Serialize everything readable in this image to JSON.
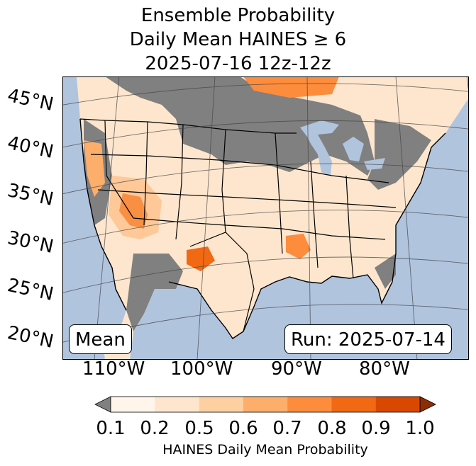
{
  "title": {
    "line1": "Ensemble Probability",
    "line2": "Daily Mean HAINES ≥ 6",
    "line3": "2025-07-16 12z-12z"
  },
  "lat_labels": [
    "45°N",
    "40°N",
    "35°N",
    "30°N",
    "25°N",
    "20°N"
  ],
  "lon_labels": [
    "110°W",
    "100°W",
    "90°W",
    "80°W"
  ],
  "boxes": {
    "left": "Mean",
    "right": "Run: 2025-07-14"
  },
  "colorbar": {
    "ticks": [
      "0.1",
      "0.2",
      "0.5",
      "0.6",
      "0.7",
      "0.8",
      "0.9",
      "1.0"
    ],
    "colors": [
      "#fff5eb",
      "#fee6ce",
      "#fdd0a2",
      "#fdae6b",
      "#fd8d3c",
      "#f16913",
      "#d94801",
      "#8c2d04"
    ],
    "under_color": "#808080",
    "label": "HAINES Daily Mean Probability"
  },
  "colors": {
    "ocean": "#b0c4de",
    "gray_region": "#808080",
    "land_low": "#fff5eb"
  }
}
